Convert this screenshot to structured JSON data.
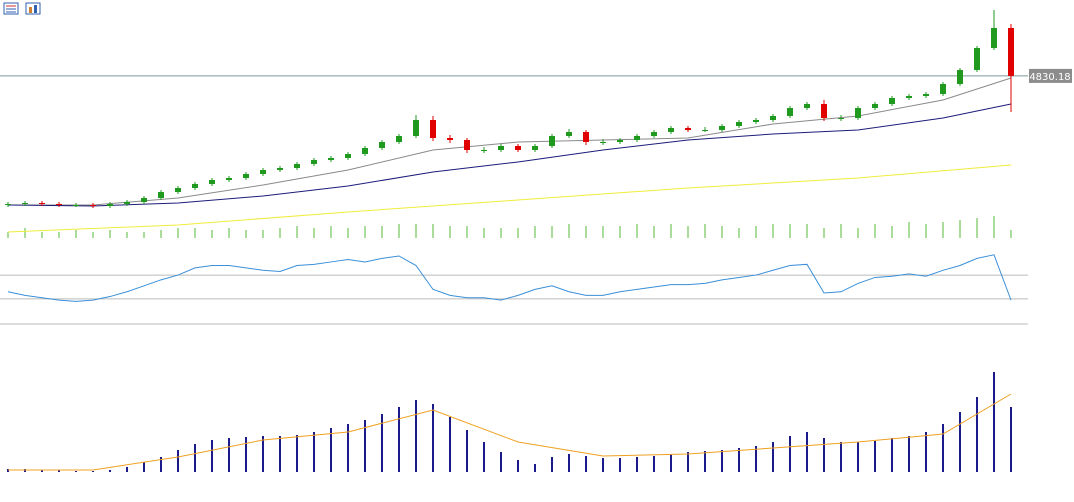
{
  "chart_data": [
    {
      "type": "candlestick",
      "up_color": "#1f9a1f",
      "down_color": "#e00000",
      "ylim": [
        4516,
        4982
      ],
      "price_line": 4830.18,
      "candles": [
        [
          4572,
          4578,
          4568,
          4574
        ],
        [
          4574,
          4580,
          4570,
          4576
        ],
        [
          4576,
          4580,
          4570,
          4574
        ],
        [
          4574,
          4578,
          4568,
          4572
        ],
        [
          4572,
          4576,
          4568,
          4572
        ],
        [
          4572,
          4576,
          4566,
          4570
        ],
        [
          4570,
          4578,
          4566,
          4574
        ],
        [
          4574,
          4582,
          4570,
          4578
        ],
        [
          4578,
          4590,
          4574,
          4586
        ],
        [
          4586,
          4602,
          4582,
          4598
        ],
        [
          4598,
          4610,
          4594,
          4606
        ],
        [
          4606,
          4618,
          4602,
          4614
        ],
        [
          4614,
          4626,
          4610,
          4622
        ],
        [
          4622,
          4630,
          4618,
          4626
        ],
        [
          4626,
          4638,
          4622,
          4634
        ],
        [
          4634,
          4646,
          4630,
          4642
        ],
        [
          4642,
          4650,
          4638,
          4646
        ],
        [
          4646,
          4658,
          4642,
          4654
        ],
        [
          4654,
          4666,
          4650,
          4662
        ],
        [
          4662,
          4670,
          4658,
          4666
        ],
        [
          4666,
          4678,
          4662,
          4674
        ],
        [
          4674,
          4690,
          4670,
          4686
        ],
        [
          4686,
          4702,
          4682,
          4698
        ],
        [
          4698,
          4714,
          4694,
          4710
        ],
        [
          4710,
          4752,
          4706,
          4742
        ],
        [
          4742,
          4750,
          4700,
          4706
        ],
        [
          4706,
          4712,
          4696,
          4702
        ],
        [
          4702,
          4706,
          4676,
          4682
        ],
        [
          4682,
          4688,
          4676,
          4682
        ],
        [
          4682,
          4694,
          4678,
          4690
        ],
        [
          4690,
          4694,
          4678,
          4682
        ],
        [
          4682,
          4694,
          4678,
          4690
        ],
        [
          4690,
          4714,
          4686,
          4710
        ],
        [
          4710,
          4724,
          4706,
          4718
        ],
        [
          4718,
          4722,
          4692,
          4698
        ],
        [
          4698,
          4704,
          4692,
          4698
        ],
        [
          4698,
          4706,
          4694,
          4702
        ],
        [
          4702,
          4714,
          4698,
          4710
        ],
        [
          4710,
          4722,
          4706,
          4718
        ],
        [
          4718,
          4730,
          4714,
          4726
        ],
        [
          4726,
          4730,
          4718,
          4722
        ],
        [
          4722,
          4728,
          4718,
          4722
        ],
        [
          4722,
          4734,
          4718,
          4730
        ],
        [
          4730,
          4742,
          4726,
          4738
        ],
        [
          4738,
          4746,
          4734,
          4742
        ],
        [
          4742,
          4754,
          4738,
          4750
        ],
        [
          4750,
          4770,
          4746,
          4766
        ],
        [
          4766,
          4778,
          4762,
          4774
        ],
        [
          4774,
          4782,
          4740,
          4746
        ],
        [
          4746,
          4752,
          4740,
          4746
        ],
        [
          4746,
          4770,
          4742,
          4766
        ],
        [
          4766,
          4778,
          4762,
          4774
        ],
        [
          4774,
          4790,
          4770,
          4786
        ],
        [
          4786,
          4794,
          4782,
          4790
        ],
        [
          4790,
          4798,
          4786,
          4794
        ],
        [
          4794,
          4818,
          4790,
          4814
        ],
        [
          4814,
          4846,
          4810,
          4842
        ],
        [
          4842,
          4890,
          4838,
          4886
        ],
        [
          4886,
          4962,
          4882,
          4926
        ],
        [
          4926,
          4934,
          4758,
          4830.18
        ]
      ],
      "lines": [
        {
          "color": "#8a8a8a",
          "x": [
            0,
            5,
            10,
            15,
            20,
            25,
            30,
            35,
            40,
            45,
            50,
            55,
            59
          ],
          "values": [
            4572,
            4572,
            4586,
            4612,
            4642,
            4682,
            4698,
            4702,
            4706,
            4734,
            4750,
            4782,
            4826
          ]
        },
        {
          "color": "#1c1c7a",
          "x": [
            0,
            5,
            10,
            15,
            20,
            25,
            30,
            35,
            40,
            45,
            50,
            55,
            59
          ],
          "values": [
            4572,
            4570,
            4576,
            4590,
            4610,
            4638,
            4658,
            4682,
            4702,
            4714,
            4722,
            4746,
            4774
          ]
        },
        {
          "color": "#f0ec3c",
          "x": [
            0,
            10,
            20,
            30,
            40,
            50,
            59
          ],
          "values": [
            4518,
            4532,
            4558,
            4582,
            4606,
            4626,
            4652
          ]
        }
      ],
      "volume": {
        "color": "#55bb33",
        "ylim": [
          0,
          30
        ],
        "values": [
          6,
          10,
          6,
          6,
          8,
          6,
          8,
          6,
          6,
          8,
          10,
          10,
          8,
          10,
          8,
          8,
          10,
          12,
          10,
          12,
          10,
          12,
          12,
          14,
          14,
          14,
          12,
          12,
          10,
          10,
          10,
          12,
          12,
          14,
          12,
          12,
          12,
          14,
          12,
          14,
          12,
          14,
          12,
          10,
          12,
          14,
          14,
          14,
          10,
          14,
          10,
          14,
          12,
          16,
          14,
          16,
          18,
          20,
          22,
          8
        ]
      }
    },
    {
      "type": "line",
      "color": "#3a8fd8",
      "ylim": [
        29,
        91
      ],
      "levels": [
        50,
        70
      ],
      "values": [
        56,
        53,
        51,
        49,
        48,
        49,
        52,
        56,
        61,
        66,
        70,
        76,
        78,
        78,
        76,
        74,
        73,
        78,
        79,
        81,
        83,
        81,
        84,
        86,
        78,
        58,
        53,
        51,
        51,
        49,
        53,
        58,
        61,
        56,
        53,
        53,
        56,
        58,
        60,
        62,
        62,
        63,
        66,
        68,
        70,
        74,
        78,
        79,
        55,
        56,
        63,
        68,
        69,
        71,
        69,
        74,
        78,
        84,
        87,
        49
      ]
    },
    {
      "type": "bar",
      "color": "#1a1a8a",
      "ylim": [
        0,
        105
      ],
      "values": [
        3,
        3,
        2,
        2,
        1,
        1,
        2,
        5,
        10,
        15,
        22,
        28,
        32,
        34,
        35,
        36,
        36,
        37,
        40,
        44,
        48,
        52,
        58,
        65,
        72,
        68,
        55,
        42,
        30,
        20,
        12,
        8,
        15,
        18,
        16,
        14,
        14,
        15,
        16,
        18,
        20,
        21,
        22,
        24,
        26,
        30,
        36,
        40,
        34,
        30,
        30,
        31,
        34,
        36,
        40,
        48,
        60,
        75,
        100,
        65
      ],
      "signal": {
        "color": "#f0a020",
        "x": [
          0,
          5,
          10,
          15,
          20,
          25,
          30,
          35,
          40,
          45,
          50,
          55,
          59
        ],
        "values": [
          2,
          2,
          15,
          32,
          40,
          62,
          30,
          16,
          18,
          24,
          30,
          38,
          78
        ]
      }
    }
  ]
}
